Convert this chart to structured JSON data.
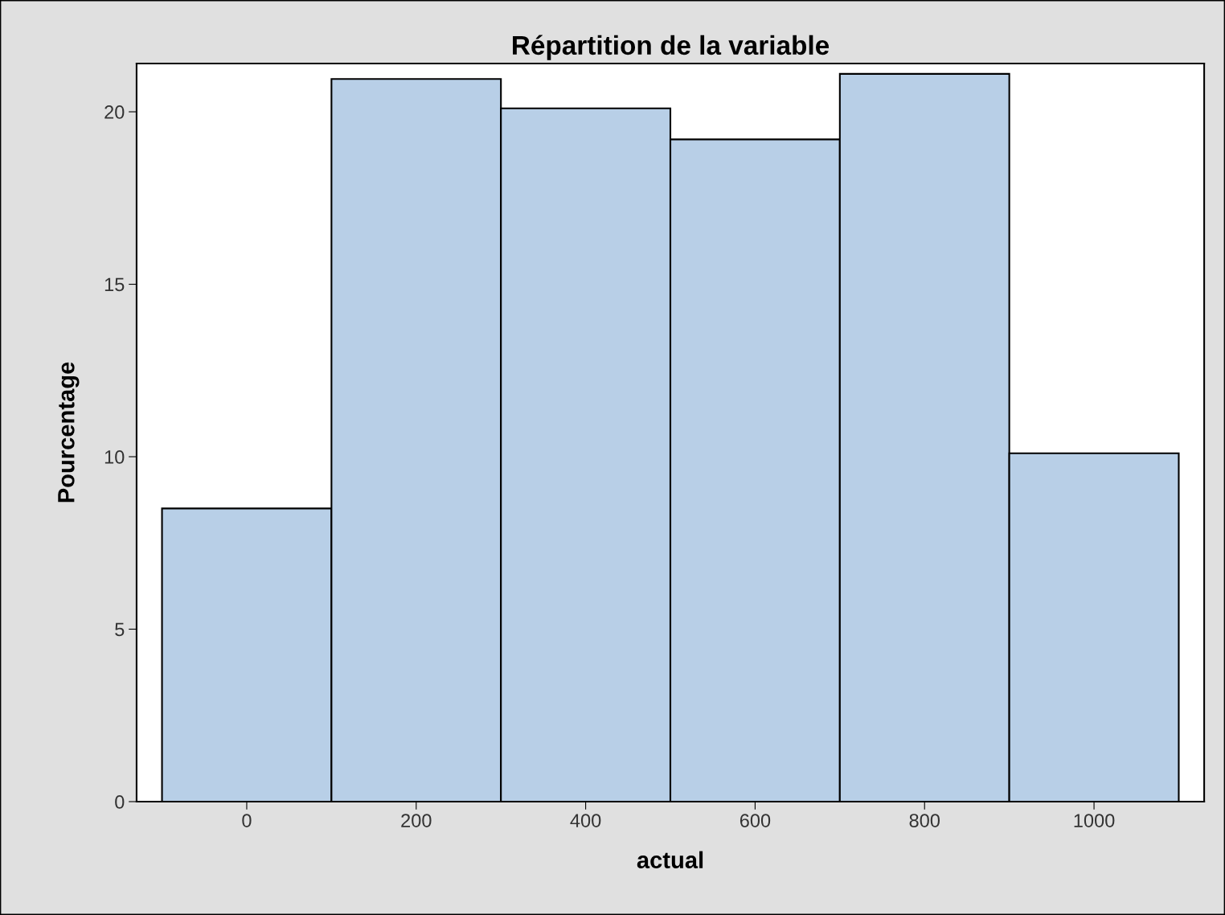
{
  "chart_data": {
    "type": "histogram",
    "title": "Répartition de la variable",
    "xlabel": "actual",
    "ylabel": "Pourcentage",
    "bins": [
      -100,
      100,
      300,
      500,
      700,
      900,
      1100
    ],
    "values": [
      8.5,
      20.95,
      20.1,
      19.2,
      21.1,
      10.1
    ],
    "color": "#b8cfe7",
    "xlim": [
      -130,
      1130
    ],
    "xticks": [
      0,
      200,
      400,
      600,
      800,
      1000
    ],
    "ylim": [
      0,
      21.4
    ],
    "yticks": [
      0,
      5,
      10,
      15,
      20
    ],
    "grid": false
  }
}
